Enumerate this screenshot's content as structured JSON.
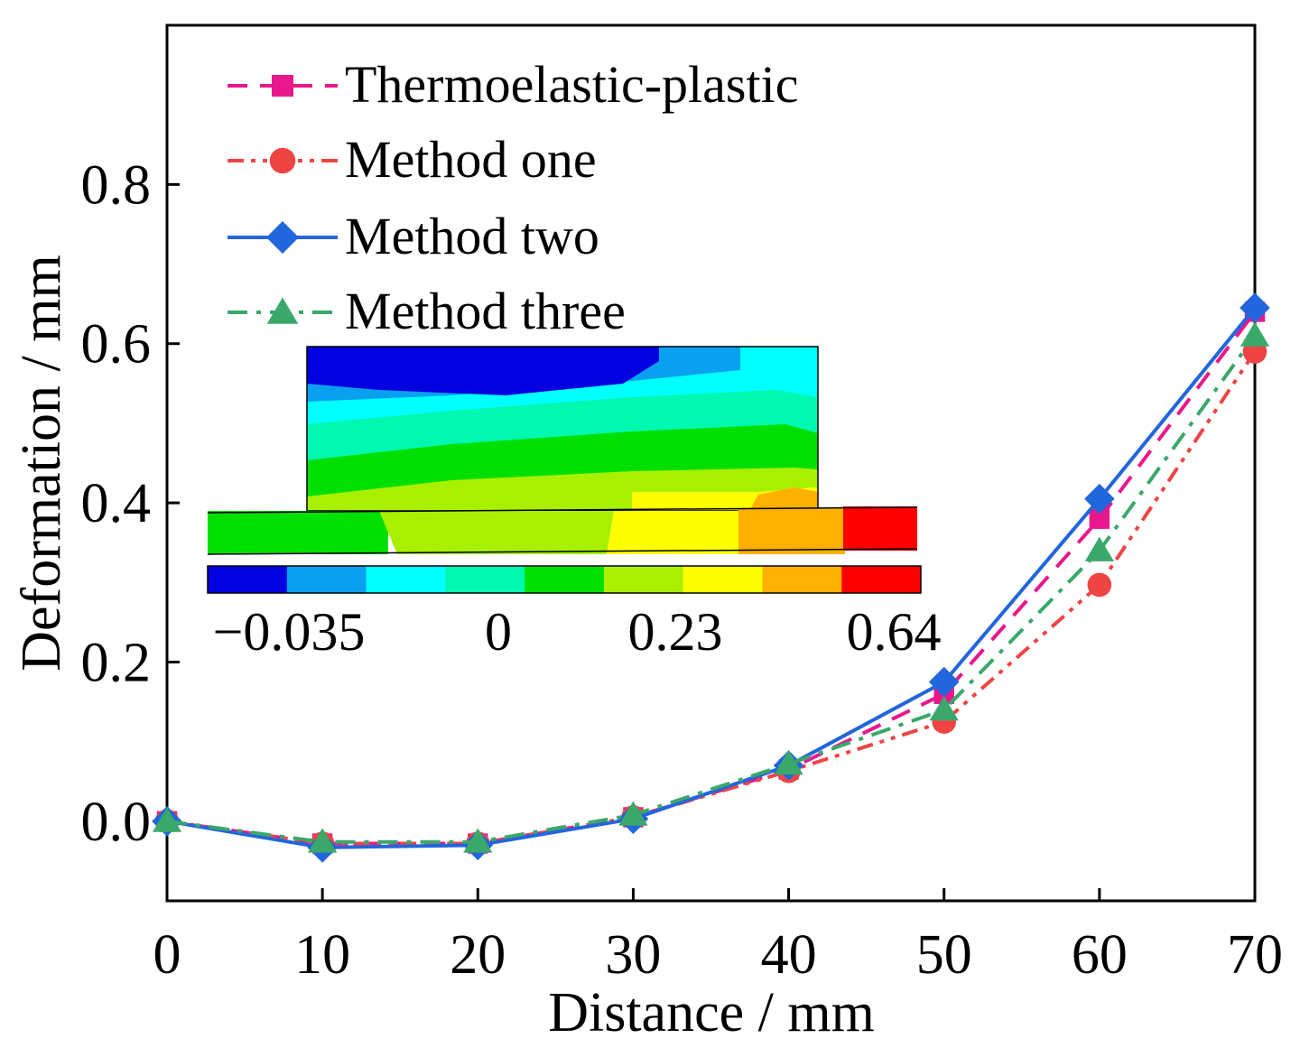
{
  "chart_data": {
    "type": "line",
    "xlabel": "Distance / mm",
    "ylabel": "Deformation / mm",
    "xlim": [
      0,
      70
    ],
    "ylim": [
      -0.1,
      1.0
    ],
    "xticks": [
      0,
      10,
      20,
      30,
      40,
      50,
      60,
      70
    ],
    "xtick_labels": [
      "0",
      "10",
      "20",
      "30",
      "40",
      "50",
      "60",
      "70"
    ],
    "yticks": [
      0.0,
      0.2,
      0.4,
      0.6,
      0.8
    ],
    "ytick_labels": [
      "0.0",
      "0.2",
      "0.4",
      "0.6",
      "0.8"
    ],
    "x": [
      0,
      10,
      20,
      30,
      40,
      50,
      60,
      70
    ],
    "legend_position": "top-left",
    "series": [
      {
        "name": "Thermoelastic-plastic",
        "values": [
          0.0,
          -0.028,
          -0.028,
          0.005,
          0.065,
          0.16,
          0.38,
          0.64
        ],
        "color": "#e8188c",
        "marker": "square",
        "dash": "dash"
      },
      {
        "name": "Method one",
        "values": [
          0.0,
          -0.028,
          -0.028,
          0.005,
          0.063,
          0.125,
          0.297,
          0.59
        ],
        "color": "#ef4444",
        "marker": "circle",
        "dash": "dashdotdot"
      },
      {
        "name": "Method two",
        "values": [
          0.0,
          -0.033,
          -0.03,
          0.003,
          0.07,
          0.175,
          0.405,
          0.645
        ],
        "color": "#2266dd",
        "marker": "diamond",
        "dash": "solid"
      },
      {
        "name": "Method three",
        "values": [
          0.0,
          -0.026,
          -0.026,
          0.008,
          0.072,
          0.14,
          0.34,
          0.61
        ],
        "color": "#3aa86b",
        "marker": "triangle",
        "dash": "dashdot"
      }
    ],
    "inset": {
      "description_type": "contour-colorbar",
      "colorbar_colors": [
        "#0000e0",
        "#0aa0f0",
        "#00ffff",
        "#00f8b0",
        "#00e000",
        "#a8f000",
        "#ffff00",
        "#ffb000",
        "#ff0000"
      ],
      "colorbar_labels": [
        "−0.035",
        "0",
        "0.23",
        "0.64"
      ]
    }
  }
}
